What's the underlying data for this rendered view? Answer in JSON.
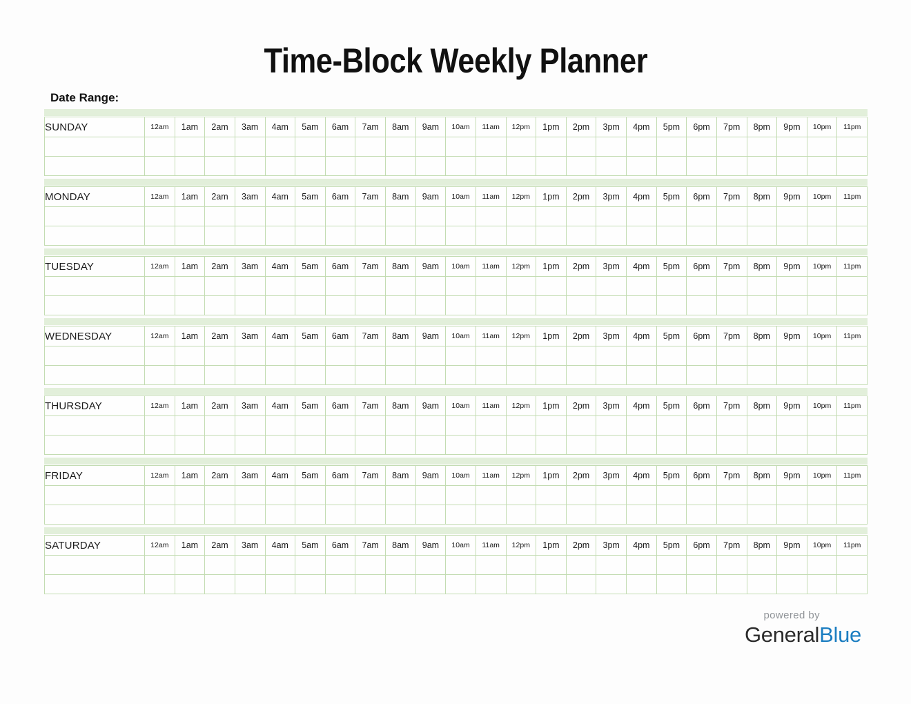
{
  "page": {
    "title": "Time-Block Weekly Planner",
    "date_range_label": "Date Range:"
  },
  "planner": {
    "days": [
      "SUNDAY",
      "MONDAY",
      "TUESDAY",
      "WEDNESDAY",
      "THURSDAY",
      "FRIDAY",
      "SATURDAY"
    ],
    "time_slots": [
      "12am",
      "1am",
      "2am",
      "3am",
      "4am",
      "5am",
      "6am",
      "7am",
      "8am",
      "9am",
      "10am",
      "11am",
      "12pm",
      "1pm",
      "2pm",
      "3pm",
      "4pm",
      "5pm",
      "6pm",
      "7pm",
      "8pm",
      "9pm",
      "10pm",
      "11pm"
    ],
    "empty_rows_per_day": 2
  },
  "footer": {
    "powered_by": "powered by",
    "brand_first": "General",
    "brand_second": "Blue"
  },
  "colors": {
    "strip_green": "#e2efda",
    "grid_green": "#c3dcb2",
    "brand_blue": "#1c7ec1",
    "powered_gray": "#8f9397",
    "page_background": "#fdfdfd"
  }
}
